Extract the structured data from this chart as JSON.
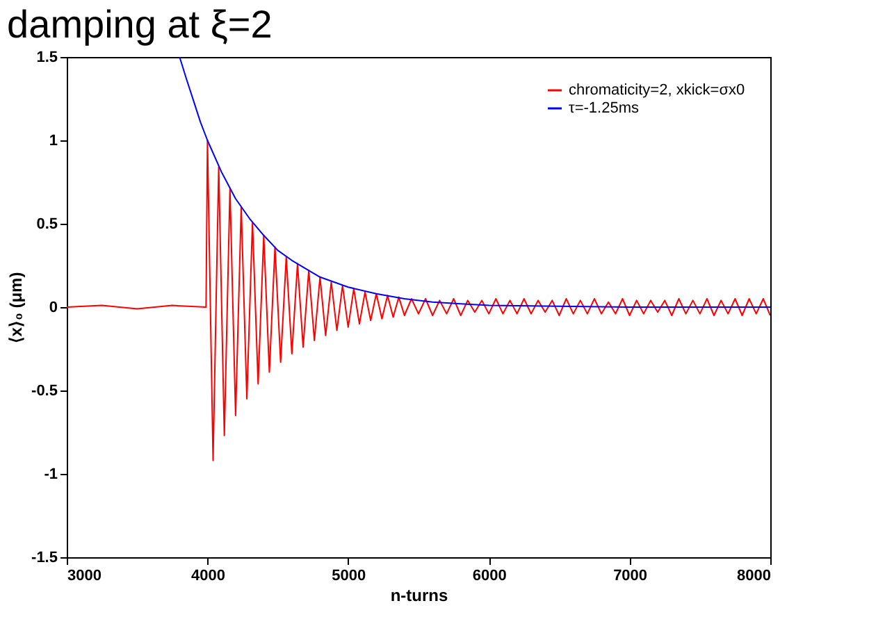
{
  "chart_data": {
    "type": "line",
    "title": "damping at ξ=2",
    "xlabel": "n-turns",
    "ylabel": "⟨x⟩₀ (μm)",
    "xlim": [
      3000,
      8000
    ],
    "xticks": [
      3000,
      4000,
      5000,
      6000,
      7000,
      8000
    ],
    "ylim": [
      -1.5,
      1.5
    ],
    "yticks": [
      -1.5,
      -1,
      -0.5,
      0,
      0.5,
      1,
      1.5
    ],
    "grid": false,
    "legend": "top right",
    "marker": "none",
    "line_style": "solid",
    "series": [
      {
        "name": "chromaticity=2, xkick=σx0",
        "color": "#ff0000",
        "x": [
          3000,
          3250,
          3500,
          3750,
          3990,
          4000,
          4040,
          4080,
          4120,
          4160,
          4200,
          4240,
          4280,
          4320,
          4360,
          4400,
          4440,
          4480,
          4520,
          4560,
          4600,
          4640,
          4680,
          4720,
          4760,
          4800,
          4840,
          4880,
          4920,
          4960,
          5000,
          5040,
          5080,
          5120,
          5160,
          5200,
          5240,
          5280,
          5320,
          5360,
          5400,
          5450,
          5500,
          5550,
          5600,
          5650,
          5700,
          5750,
          5800,
          5850,
          5900,
          5950,
          6000,
          6050,
          6100,
          6150,
          6200,
          6250,
          6300,
          6350,
          6400,
          6450,
          6500,
          6550,
          6600,
          6650,
          6700,
          6750,
          6800,
          6850,
          6900,
          6950,
          7000,
          7050,
          7100,
          7150,
          7200,
          7250,
          7300,
          7350,
          7400,
          7450,
          7500,
          7550,
          7600,
          7650,
          7700,
          7750,
          7800,
          7850,
          7900,
          7950,
          8000
        ],
        "values": [
          0,
          0.01,
          -0.01,
          0.01,
          0,
          1.0,
          -0.92,
          0.84,
          -0.77,
          0.71,
          -0.65,
          0.6,
          -0.55,
          0.51,
          -0.46,
          0.43,
          -0.39,
          0.36,
          -0.33,
          0.3,
          -0.28,
          0.26,
          -0.24,
          0.22,
          -0.2,
          0.18,
          -0.17,
          0.15,
          -0.14,
          0.13,
          -0.12,
          0.11,
          -0.1,
          0.09,
          -0.08,
          0.08,
          -0.07,
          0.07,
          -0.06,
          0.06,
          -0.05,
          0.05,
          -0.04,
          0.05,
          -0.05,
          0.04,
          -0.04,
          0.05,
          -0.05,
          0.04,
          -0.03,
          0.04,
          -0.04,
          0.05,
          -0.04,
          0.04,
          -0.04,
          0.05,
          -0.04,
          0.04,
          -0.03,
          0.04,
          -0.05,
          0.05,
          -0.04,
          0.04,
          -0.04,
          0.05,
          -0.04,
          0.03,
          -0.04,
          0.05,
          -0.05,
          0.04,
          -0.04,
          0.04,
          -0.03,
          0.04,
          -0.05,
          0.05,
          -0.04,
          0.04,
          -0.04,
          0.05,
          -0.05,
          0.04,
          -0.04,
          0.05,
          -0.05,
          0.05,
          -0.04,
          0.05,
          -0.05
        ]
      },
      {
        "name": "τ=-1.25ms",
        "color": "#0000ff",
        "x": [
          3802,
          3850,
          3900,
          3950,
          4000,
          4100,
          4200,
          4300,
          4400,
          4500,
          4600,
          4700,
          4800,
          4900,
          5000,
          5200,
          5400,
          5600,
          5800,
          6000,
          7000,
          8000
        ],
        "values": [
          1.5,
          1.37,
          1.24,
          1.11,
          1.0,
          0.81,
          0.65,
          0.53,
          0.43,
          0.34,
          0.28,
          0.23,
          0.18,
          0.15,
          0.12,
          0.08,
          0.05,
          0.03,
          0.02,
          0.01,
          0,
          0
        ]
      }
    ]
  }
}
